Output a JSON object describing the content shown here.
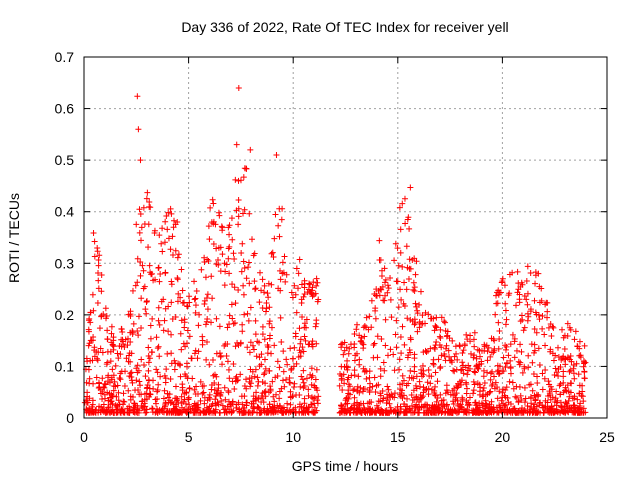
{
  "chart_data": {
    "type": "scatter",
    "title": "Day 336 of 2022, Rate Of TEC Index for receiver yell",
    "xlabel": "GPS time / hours",
    "ylabel": "ROTI / TECUs",
    "xlim": [
      0,
      25
    ],
    "ylim": [
      0,
      0.7
    ],
    "xticks": [
      "0",
      "5",
      "10",
      "15",
      "20",
      "25"
    ],
    "yticks": [
      "0",
      "0.1",
      "0.2",
      "0.3",
      "0.4",
      "0.5",
      "0.6",
      "0.7"
    ],
    "xtick_values": [
      0,
      5,
      10,
      15,
      20,
      25
    ],
    "ytick_values": [
      0,
      0.1,
      0.2,
      0.3,
      0.4,
      0.5,
      0.6,
      0.7
    ],
    "grid": true,
    "marker": "+",
    "color": "#ff0000",
    "data_gap": [
      11.2,
      12.2
    ],
    "envelope": [
      {
        "x": 0.0,
        "y": 0.12
      },
      {
        "x": 0.3,
        "y": 0.22
      },
      {
        "x": 0.5,
        "y": 0.41
      },
      {
        "x": 0.8,
        "y": 0.29
      },
      {
        "x": 1.2,
        "y": 0.18
      },
      {
        "x": 1.6,
        "y": 0.2
      },
      {
        "x": 2.0,
        "y": 0.17
      },
      {
        "x": 2.3,
        "y": 0.24
      },
      {
        "x": 2.6,
        "y": 0.5
      },
      {
        "x": 3.0,
        "y": 0.45
      },
      {
        "x": 3.5,
        "y": 0.35
      },
      {
        "x": 4.0,
        "y": 0.42
      },
      {
        "x": 4.3,
        "y": 0.46
      },
      {
        "x": 4.8,
        "y": 0.22
      },
      {
        "x": 5.3,
        "y": 0.3
      },
      {
        "x": 5.8,
        "y": 0.36
      },
      {
        "x": 6.2,
        "y": 0.45
      },
      {
        "x": 6.8,
        "y": 0.38
      },
      {
        "x": 7.3,
        "y": 0.48
      },
      {
        "x": 7.8,
        "y": 0.5
      },
      {
        "x": 8.3,
        "y": 0.3
      },
      {
        "x": 8.8,
        "y": 0.27
      },
      {
        "x": 9.3,
        "y": 0.5
      },
      {
        "x": 9.8,
        "y": 0.26
      },
      {
        "x": 10.2,
        "y": 0.32
      },
      {
        "x": 10.6,
        "y": 0.28
      },
      {
        "x": 11.1,
        "y": 0.31
      },
      {
        "x": 12.3,
        "y": 0.15
      },
      {
        "x": 13.0,
        "y": 0.18
      },
      {
        "x": 13.6,
        "y": 0.2
      },
      {
        "x": 14.1,
        "y": 0.35
      },
      {
        "x": 14.6,
        "y": 0.28
      },
      {
        "x": 15.1,
        "y": 0.41
      },
      {
        "x": 15.5,
        "y": 0.45
      },
      {
        "x": 16.0,
        "y": 0.28
      },
      {
        "x": 16.5,
        "y": 0.2
      },
      {
        "x": 17.2,
        "y": 0.2
      },
      {
        "x": 17.8,
        "y": 0.15
      },
      {
        "x": 18.5,
        "y": 0.17
      },
      {
        "x": 19.3,
        "y": 0.16
      },
      {
        "x": 19.8,
        "y": 0.26
      },
      {
        "x": 20.3,
        "y": 0.3
      },
      {
        "x": 20.9,
        "y": 0.28
      },
      {
        "x": 21.5,
        "y": 0.31
      },
      {
        "x": 22.0,
        "y": 0.25
      },
      {
        "x": 22.6,
        "y": 0.17
      },
      {
        "x": 23.3,
        "y": 0.19
      },
      {
        "x": 24.0,
        "y": 0.14
      }
    ],
    "peaks": [
      {
        "x": 2.55,
        "y": 0.624
      },
      {
        "x": 2.6,
        "y": 0.56
      },
      {
        "x": 7.4,
        "y": 0.64
      },
      {
        "x": 7.3,
        "y": 0.53
      },
      {
        "x": 7.95,
        "y": 0.52
      },
      {
        "x": 9.2,
        "y": 0.51
      },
      {
        "x": 2.7,
        "y": 0.5
      },
      {
        "x": 15.6,
        "y": 0.447
      },
      {
        "x": 15.1,
        "y": 0.408
      }
    ]
  }
}
